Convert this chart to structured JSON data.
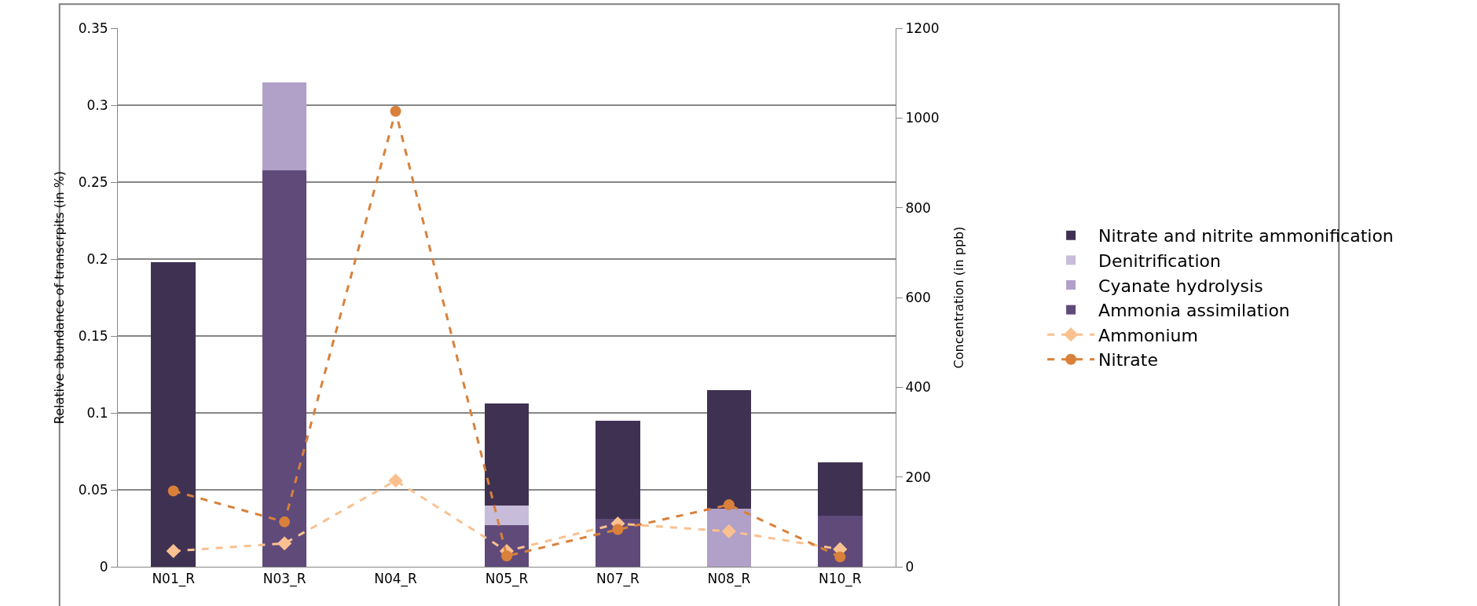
{
  "chart_data": {
    "type": "bar",
    "stacked": true,
    "ylabel": "Relative abundance of transcrpits (in %)",
    "y2label": "Concentration (in ppb)",
    "categories": [
      "N01_R",
      "N03_R",
      "N04_R",
      "N05_R",
      "N07_R",
      "N08_R",
      "N10_R"
    ],
    "ylim": [
      0,
      0.35
    ],
    "yticks": [
      {
        "value": 0,
        "label": "0"
      },
      0.05,
      0.1,
      0.15,
      0.2,
      0.25,
      0.3,
      0.35
    ],
    "y2lim": [
      0,
      1200
    ],
    "y2ticks": [
      0,
      200,
      400,
      600,
      800,
      1000,
      1200
    ],
    "grid": "y",
    "legend": "right",
    "series": [
      {
        "name": "Ammonia assimilation",
        "color": "#5f4a7a",
        "values": [
          0,
          0.2575,
          0,
          0.027,
          0.031,
          0,
          0.033
        ]
      },
      {
        "name": "Cyanate hydrolysis",
        "color": "#b1a0c7",
        "values": [
          0,
          0.0575,
          0,
          0,
          0,
          0.038,
          0
        ]
      },
      {
        "name": "Denitrification",
        "color": "#c7bcd9",
        "values": [
          0,
          0,
          0,
          0.013,
          0,
          0,
          0
        ]
      },
      {
        "name": "Nitrate and nitrite ammonification",
        "color": "#3f3152",
        "values": [
          0.198,
          0,
          0,
          0.066,
          0.064,
          0.077,
          0.035
        ]
      },
      {
        "name": "Ammonium",
        "type": "line",
        "axis": "y2",
        "color": "#fac090",
        "marker": "diamond",
        "line_style": "dashed",
        "values": [
          35,
          52,
          192,
          35,
          96,
          79,
          39
        ]
      },
      {
        "name": "Nitrate",
        "type": "line",
        "axis": "y2",
        "color": "#d9803a",
        "marker": "circle",
        "line_style": "dashed",
        "values": [
          169,
          100,
          1015,
          24,
          83,
          138,
          22
        ]
      }
    ]
  }
}
